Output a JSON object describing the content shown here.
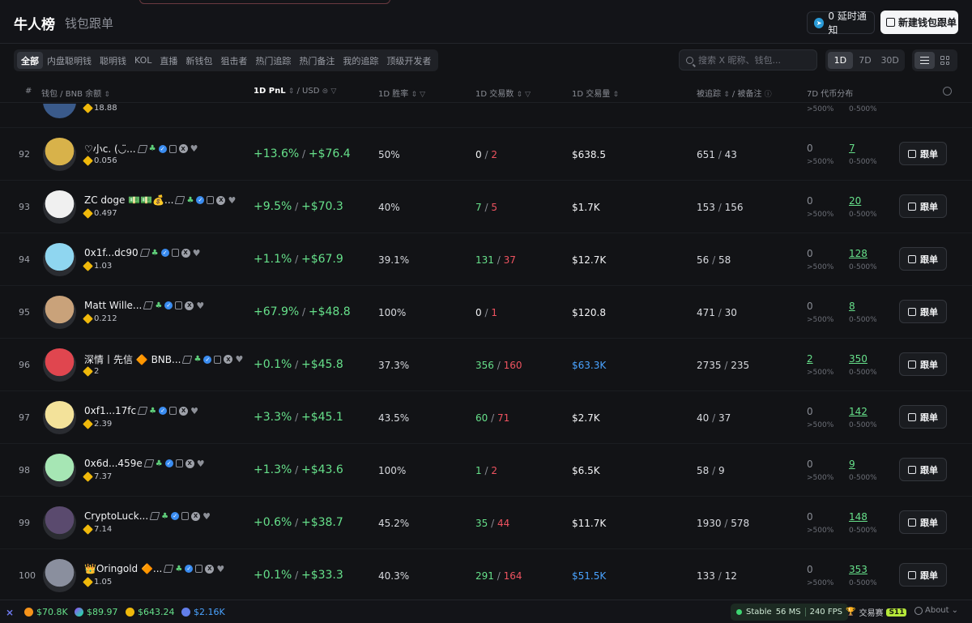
{
  "header": {
    "title": "牛人榜",
    "tab2": "钱包跟单",
    "notify_label": "0 延时通知",
    "new_follow_label": "新建钱包跟单"
  },
  "filters": [
    "全部",
    "内盘聪明钱",
    "聪明钱",
    "KOL",
    "直播",
    "新钱包",
    "狙击者",
    "热门追踪",
    "热门备注",
    "我的追踪",
    "顶级开发者"
  ],
  "search": {
    "placeholder": "搜索 X 昵称、钱包..."
  },
  "periods": [
    "1D",
    "7D",
    "30D"
  ],
  "columns": {
    "rank": "#",
    "wallet": "钱包",
    "wallet_sub": "BNB 余额",
    "pnl": "1D PnL",
    "pnl_sub": "USD",
    "win": "1D 胜率",
    "trades": "1D 交易数",
    "volume": "1D 交易量",
    "tracked": "被追踪",
    "noted": "被备注",
    "dist": "7D 代币分布"
  },
  "partial_row": {
    "balance": "18.88",
    "d7a_sub": ">500%",
    "d7b_sub": "0-500%"
  },
  "follow_label": "跟单",
  "rows": [
    {
      "rank": "92",
      "name": "♡小c. (◡̈...",
      "balance": "0.056",
      "pnl_pct": "+13.6%",
      "pnl_usd": "+$76.4",
      "win": "50%",
      "buys": "0",
      "sells": "2",
      "volume": "$638.5",
      "vol_blue": false,
      "tracked": "651",
      "noted": "43",
      "d7a": "0",
      "d7a_sub": ">500%",
      "d7b": "7",
      "d7b_sub": "0-500%",
      "avatar_color": "#d8b24a"
    },
    {
      "rank": "93",
      "name": "ZC doge 💵💵💰...",
      "balance": "0.497",
      "pnl_pct": "+9.5%",
      "pnl_usd": "+$70.3",
      "win": "40%",
      "buys": "7",
      "sells": "5",
      "volume": "$1.7K",
      "vol_blue": false,
      "tracked": "153",
      "noted": "156",
      "d7a": "0",
      "d7a_sub": ">500%",
      "d7b": "20",
      "d7b_sub": "0-500%",
      "avatar_color": "#f0f0f0"
    },
    {
      "rank": "94",
      "name": "0x1f...dc90",
      "balance": "1.03",
      "pnl_pct": "+1.1%",
      "pnl_usd": "+$67.9",
      "win": "39.1%",
      "buys": "131",
      "sells": "37",
      "volume": "$12.7K",
      "vol_blue": false,
      "tracked": "56",
      "noted": "58",
      "d7a": "0",
      "d7a_sub": ">500%",
      "d7b": "128",
      "d7b_sub": "0-500%",
      "avatar_color": "#8fd6f0"
    },
    {
      "rank": "95",
      "name": "Matt Wille...",
      "balance": "0.212",
      "pnl_pct": "+67.9%",
      "pnl_usd": "+$48.8",
      "win": "100%",
      "buys": "0",
      "sells": "1",
      "volume": "$120.8",
      "vol_blue": false,
      "tracked": "471",
      "noted": "30",
      "d7a": "0",
      "d7a_sub": ">500%",
      "d7b": "8",
      "d7b_sub": "0-500%",
      "avatar_color": "#c9a27a"
    },
    {
      "rank": "96",
      "name": "深情丨先信 🔶 BNB...",
      "balance": "2",
      "pnl_pct": "+0.1%",
      "pnl_usd": "+$45.8",
      "win": "37.3%",
      "buys": "356",
      "sells": "160",
      "volume": "$63.3K",
      "vol_blue": true,
      "tracked": "2735",
      "noted": "235",
      "d7a": "2",
      "d7a_sub": ">500%",
      "d7b": "350",
      "d7b_sub": "0-500%",
      "avatar_color": "#e0464f"
    },
    {
      "rank": "97",
      "name": "0xf1...17fc",
      "balance": "2.39",
      "pnl_pct": "+3.3%",
      "pnl_usd": "+$45.1",
      "win": "43.5%",
      "buys": "60",
      "sells": "71",
      "volume": "$2.7K",
      "vol_blue": false,
      "tracked": "40",
      "noted": "37",
      "d7a": "0",
      "d7a_sub": ">500%",
      "d7b": "142",
      "d7b_sub": "0-500%",
      "avatar_color": "#f3e29a"
    },
    {
      "rank": "98",
      "name": "0x6d...459e",
      "balance": "7.37",
      "pnl_pct": "+1.3%",
      "pnl_usd": "+$43.6",
      "win": "100%",
      "buys": "1",
      "sells": "2",
      "volume": "$6.5K",
      "vol_blue": false,
      "tracked": "58",
      "noted": "9",
      "d7a": "0",
      "d7a_sub": ">500%",
      "d7b": "9",
      "d7b_sub": "0-500%",
      "avatar_color": "#a6e6b4"
    },
    {
      "rank": "99",
      "name": "CryptoLuck...",
      "balance": "7.14",
      "pnl_pct": "+0.6%",
      "pnl_usd": "+$38.7",
      "win": "45.2%",
      "buys": "35",
      "sells": "44",
      "volume": "$11.7K",
      "vol_blue": false,
      "tracked": "1930",
      "noted": "578",
      "d7a": "0",
      "d7a_sub": ">500%",
      "d7b": "148",
      "d7b_sub": "0-500%",
      "avatar_color": "#5a4a6e"
    },
    {
      "rank": "100",
      "name": "👑Oringold 🔶...",
      "balance": "1.05",
      "pnl_pct": "+0.1%",
      "pnl_usd": "+$33.3",
      "win": "40.3%",
      "buys": "291",
      "sells": "164",
      "volume": "$51.5K",
      "vol_blue": true,
      "tracked": "133",
      "noted": "12",
      "d7a": "0",
      "d7a_sub": ">500%",
      "d7b": "353",
      "d7b_sub": "0-500%",
      "avatar_color": "#8a8f9e"
    }
  ],
  "bottom": {
    "btc": "$70.8K",
    "sol": "$89.97",
    "bnb": "$643.24",
    "eth": "$2.16K",
    "stable": "Stable",
    "latency": "56 MS",
    "fps": "240 FPS",
    "contest": "交易赛",
    "season": "S11",
    "about": "About"
  }
}
